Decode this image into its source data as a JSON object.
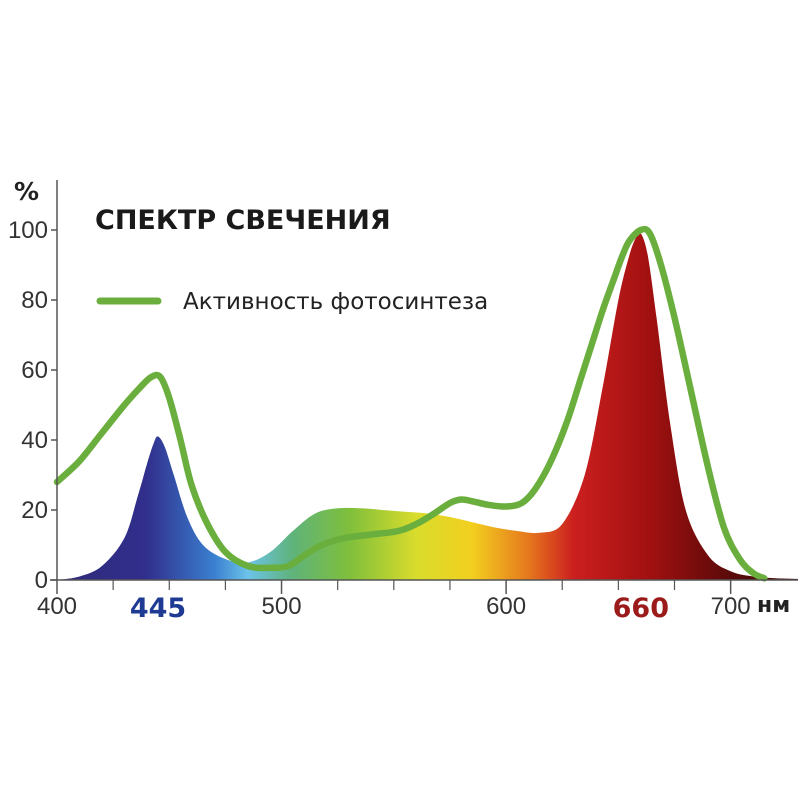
{
  "chart_data": {
    "type": "area",
    "title": "СПЕКТР СВЕЧЕНИЯ",
    "ylabel": "%",
    "xlabel": "нм",
    "xlim": [
      400,
      730
    ],
    "ylim": [
      0,
      100
    ],
    "y_ticks": [
      0,
      20,
      40,
      60,
      80,
      100
    ],
    "x_ticks": [
      400,
      500,
      600,
      700
    ],
    "x_minor_ticks": [
      425,
      450,
      475,
      525,
      550,
      575,
      625,
      650,
      675
    ],
    "peak_labels": [
      {
        "value": 445,
        "text": "445",
        "color": "#1f3a93"
      },
      {
        "value": 660,
        "text": "660",
        "color": "#9b1b1b"
      }
    ],
    "legend": {
      "position": "top-left",
      "entries": [
        "Активность фотосинтеза"
      ]
    },
    "grid": false,
    "series": [
      {
        "kind": "area-spectrum",
        "x": [
          400,
          410,
          420,
          430,
          436,
          440,
          443,
          445,
          448,
          452,
          458,
          465,
          475,
          485,
          495,
          505,
          515,
          525,
          535,
          545,
          555,
          565,
          575,
          585,
          595,
          605,
          615,
          625,
          635,
          643,
          650,
          655,
          658,
          660,
          663,
          667,
          673,
          680,
          690,
          700,
          710,
          720,
          730
        ],
        "y": [
          0,
          1,
          4,
          12,
          24,
          33,
          39,
          41,
          38,
          30,
          18,
          10,
          6,
          5,
          8,
          14,
          19,
          20.5,
          20.5,
          20,
          19.5,
          19,
          18,
          16.5,
          15,
          14,
          13.5,
          16,
          30,
          55,
          80,
          93,
          98,
          99,
          93,
          75,
          45,
          20,
          7,
          2.5,
          1,
          0.5,
          0.3
        ],
        "gradient_stops": [
          {
            "x": 400,
            "color": "#2e2a7a"
          },
          {
            "x": 440,
            "color": "#312f8c"
          },
          {
            "x": 470,
            "color": "#3a7fd0"
          },
          {
            "x": 485,
            "color": "#6cc3e8"
          },
          {
            "x": 505,
            "color": "#5fb37a"
          },
          {
            "x": 530,
            "color": "#7fbf3c"
          },
          {
            "x": 560,
            "color": "#d9dc2c"
          },
          {
            "x": 585,
            "color": "#f2cf1f"
          },
          {
            "x": 610,
            "color": "#e6781e"
          },
          {
            "x": 630,
            "color": "#cc1f1f"
          },
          {
            "x": 665,
            "color": "#a01010"
          },
          {
            "x": 700,
            "color": "#5a0a0a"
          },
          {
            "x": 730,
            "color": "#3b0808"
          }
        ]
      },
      {
        "name": "Активность фотосинтеза",
        "kind": "line",
        "color": "#6aaf3d",
        "x": [
          400,
          410,
          420,
          430,
          437,
          442,
          446,
          450,
          455,
          460,
          467,
          475,
          485,
          495,
          503,
          510,
          518,
          528,
          540,
          552,
          560,
          568,
          575,
          580,
          585,
          592,
          600,
          607,
          613,
          620,
          627,
          633,
          638,
          643,
          648,
          652,
          655,
          660,
          664,
          669,
          675,
          682,
          690,
          697,
          704,
          710,
          715
        ],
        "y": [
          28,
          34,
          42,
          50,
          55,
          58,
          58,
          52,
          40,
          27,
          16,
          8,
          4,
          3.5,
          4,
          7,
          10,
          12,
          13,
          14,
          16,
          19,
          22,
          23,
          22.5,
          21.5,
          21,
          22,
          26,
          34,
          45,
          57,
          67,
          77,
          86,
          93,
          97,
          100,
          99,
          90,
          75,
          55,
          32,
          15,
          6,
          2,
          0.5
        ]
      }
    ]
  }
}
